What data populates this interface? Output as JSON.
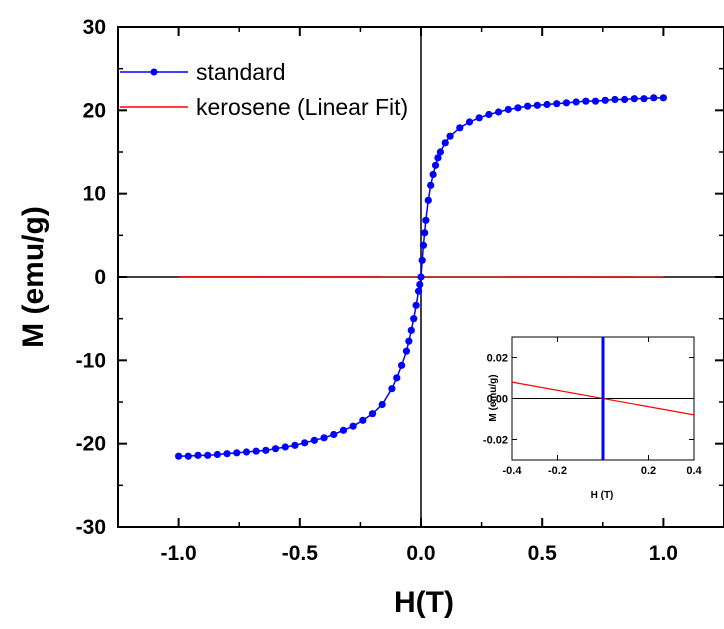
{
  "chart_data": [
    {
      "type": "line",
      "xlabel": "H(T)",
      "ylabel": "M (emu/g)",
      "xlim": [
        -1.25,
        1.25
      ],
      "ylim": [
        -30,
        30
      ],
      "x_ticks": [
        -1.0,
        -0.5,
        0.0,
        0.5,
        1.0
      ],
      "x_tick_labels": [
        "-1.0",
        "-0.5",
        "0.0",
        "0.5",
        "1.0"
      ],
      "y_ticks": [
        -30,
        -20,
        -10,
        0,
        10,
        20,
        30
      ],
      "y_tick_labels": [
        "-30",
        "-20",
        "-10",
        "0",
        "10",
        "20",
        "30"
      ],
      "legend_position": "top-left",
      "series": [
        {
          "name": "standard",
          "color": "#0000ff",
          "marker": "circle",
          "x": [
            -1.0,
            -0.96,
            -0.92,
            -0.88,
            -0.84,
            -0.8,
            -0.76,
            -0.72,
            -0.68,
            -0.64,
            -0.6,
            -0.56,
            -0.52,
            -0.48,
            -0.44,
            -0.4,
            -0.36,
            -0.32,
            -0.28,
            -0.24,
            -0.2,
            -0.16,
            -0.12,
            -0.1,
            -0.08,
            -0.06,
            -0.05,
            -0.04,
            -0.03,
            -0.02,
            -0.01,
            -0.005,
            0.0,
            0.005,
            0.01,
            0.015,
            0.02,
            0.03,
            0.04,
            0.05,
            0.06,
            0.07,
            0.08,
            0.1,
            0.12,
            0.16,
            0.2,
            0.24,
            0.28,
            0.32,
            0.36,
            0.4,
            0.44,
            0.48,
            0.52,
            0.56,
            0.6,
            0.64,
            0.68,
            0.72,
            0.76,
            0.8,
            0.84,
            0.88,
            0.92,
            0.96,
            1.0
          ],
          "y": [
            -21.5,
            -21.5,
            -21.4,
            -21.4,
            -21.3,
            -21.2,
            -21.1,
            -21.0,
            -20.9,
            -20.8,
            -20.6,
            -20.4,
            -20.2,
            -19.9,
            -19.6,
            -19.3,
            -18.9,
            -18.4,
            -17.9,
            -17.2,
            -16.4,
            -15.3,
            -13.4,
            -12.1,
            -10.6,
            -8.9,
            -7.7,
            -6.4,
            -5.0,
            -3.4,
            -1.7,
            -0.9,
            0.0,
            2.0,
            3.8,
            5.3,
            6.8,
            9.2,
            11.0,
            12.3,
            13.4,
            14.3,
            15.0,
            16.1,
            16.9,
            17.9,
            18.6,
            19.1,
            19.5,
            19.8,
            20.1,
            20.3,
            20.5,
            20.6,
            20.7,
            20.8,
            20.9,
            21.0,
            21.1,
            21.1,
            21.2,
            21.3,
            21.3,
            21.4,
            21.4,
            21.5,
            21.5
          ]
        },
        {
          "name": "kerosene (Linear Fit)",
          "color": "#ff0000",
          "marker": "none",
          "x": [
            -1.0,
            1.0
          ],
          "y": [
            0.02,
            -0.02
          ]
        }
      ]
    },
    {
      "type": "line",
      "xlabel": "H (T)",
      "ylabel": "M (emu/g)",
      "xlim": [
        -0.4,
        0.4
      ],
      "ylim": [
        -0.03,
        0.03
      ],
      "x_ticks": [
        -0.4,
        -0.2,
        0.2,
        0.4
      ],
      "x_tick_labels": [
        "-0.4",
        "-0.2",
        "0.2",
        "0.4"
      ],
      "y_ticks": [
        0.02,
        0.0,
        -0.02
      ],
      "y_tick_labels": [
        "0.02",
        "0.00",
        "-0.02"
      ],
      "series": [
        {
          "name": "kerosene (Linear Fit)",
          "color": "#ff0000",
          "x": [
            -0.4,
            0.4
          ],
          "y": [
            0.008,
            -0.008
          ]
        },
        {
          "name": "standard",
          "color": "#0000ff",
          "x": [
            0.0,
            0.0
          ],
          "y": [
            -0.03,
            0.03
          ]
        }
      ]
    }
  ]
}
